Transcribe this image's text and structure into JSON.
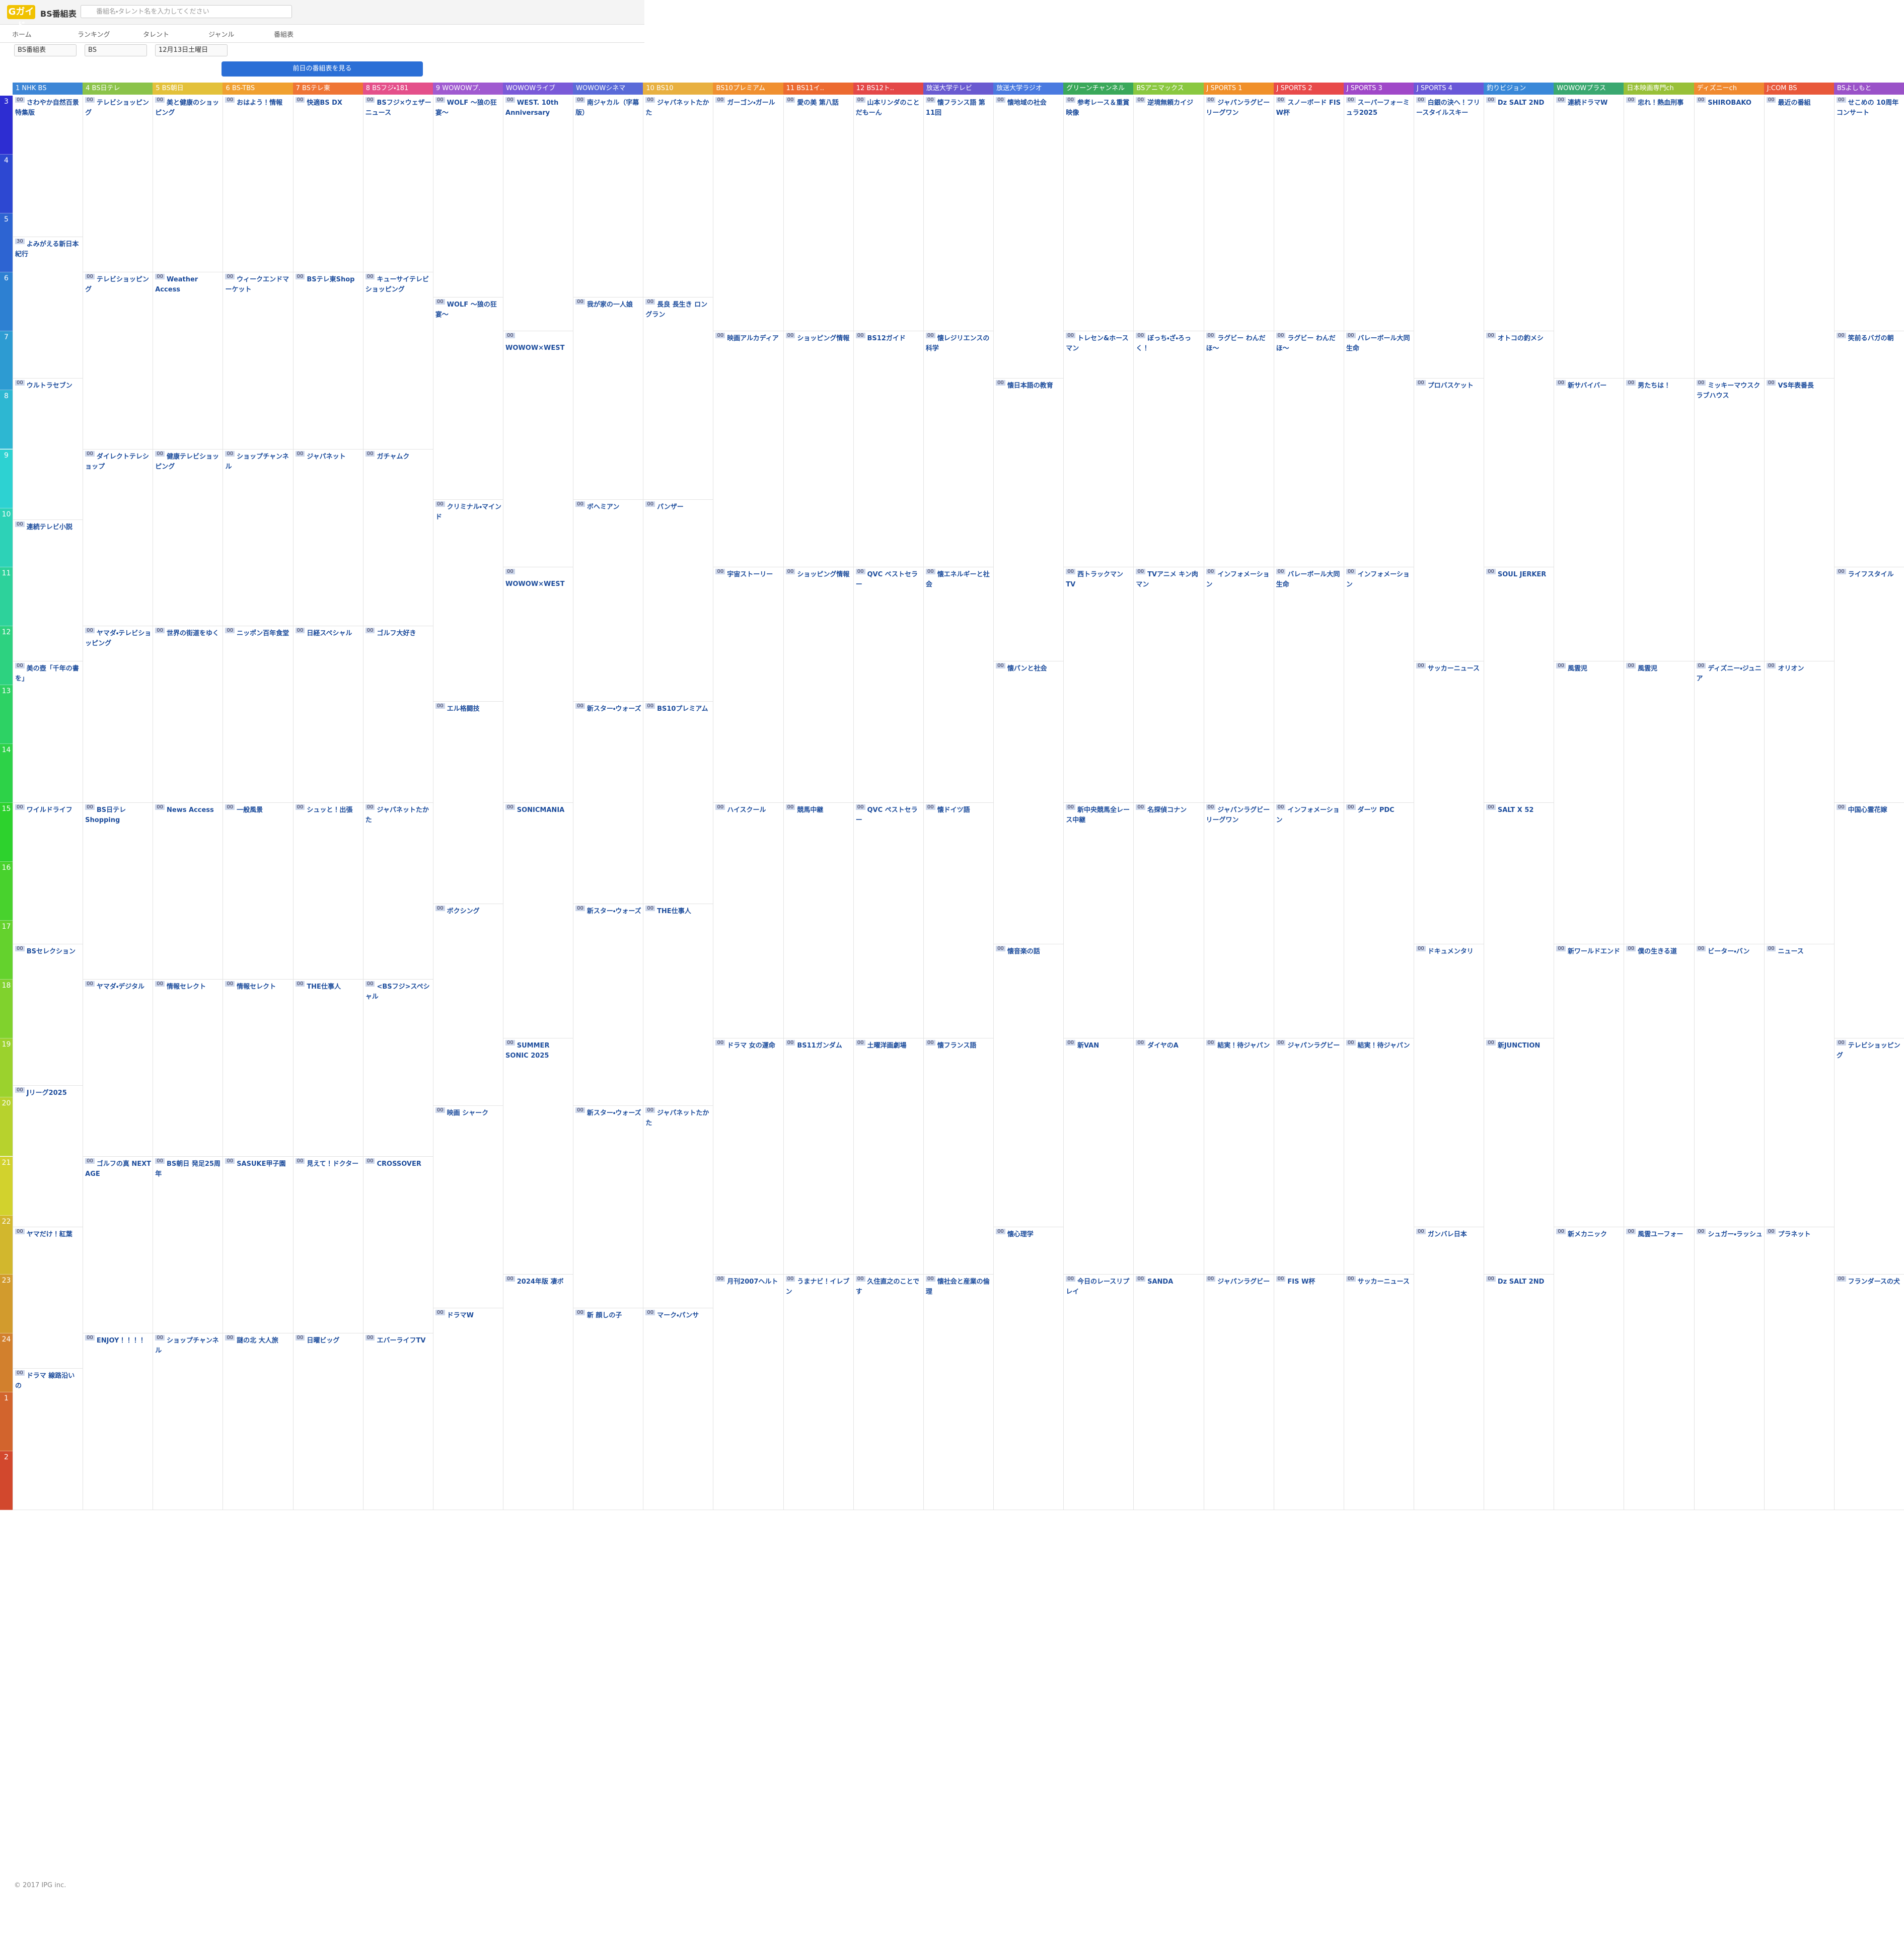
{
  "header": {
    "logo": "Gガイド",
    "title": "BS番組表",
    "search_placeholder": "番組名・タレント名を入力してください"
  },
  "nav": [
    "ホーム",
    "ランキング",
    "タレント",
    "ジャンル",
    "番組表"
  ],
  "filters": [
    "BS番組表",
    "BS",
    "12月13日土曜日"
  ],
  "button": "前日の番組表を見る",
  "hours": [
    "3",
    "4",
    "5",
    "6",
    "7",
    "8",
    "9",
    "10",
    "11",
    "12",
    "13",
    "14",
    "15",
    "16",
    "17",
    "18",
    "19",
    "20",
    "21",
    "22",
    "23",
    "24",
    "1",
    "2"
  ],
  "channels": [
    {
      "name": "1 NHK BS",
      "color": "#3d86d6",
      "programs": [
        {
          "min": "00",
          "title": "さわやか自然百景 特集版"
        },
        {
          "min": "30",
          "title": "よみがえる新日本紀行"
        },
        {
          "min": "00",
          "title": "ウルトラセブン"
        },
        {
          "min": "00",
          "title": "連続テレビ小説"
        },
        {
          "min": "00",
          "title": "美の壺「千年の書を」"
        },
        {
          "min": "00",
          "title": "ワイルドライフ"
        },
        {
          "min": "00",
          "title": "BSセレクション"
        },
        {
          "min": "00",
          "title": "Jリーグ2025"
        },
        {
          "min": "00",
          "title": "ヤマだけ！紅葉"
        },
        {
          "min": "00",
          "title": "ドラマ 線路沿いの"
        }
      ]
    },
    {
      "name": "4 BS日テレ",
      "color": "#8bc34a",
      "programs": [
        {
          "min": "00",
          "title": "テレビショッピング"
        },
        {
          "min": "00",
          "title": "テレビショッピング"
        },
        {
          "min": "00",
          "title": "ダイレクトテレショップ"
        },
        {
          "min": "00",
          "title": "ヤマダ・テレビショッピング"
        },
        {
          "min": "00",
          "title": "BS日テレ Shopping"
        },
        {
          "min": "00",
          "title": "ヤマダ・デジタル"
        },
        {
          "min": "00",
          "title": "ゴルフの真 NEXT AGE"
        },
        {
          "min": "00",
          "title": "ENJOY！！！！"
        }
      ]
    },
    {
      "name": "5 BS朝日",
      "color": "#e3c13a",
      "programs": [
        {
          "min": "00",
          "title": "美と健康のショッピング"
        },
        {
          "min": "00",
          "title": "Weather Access"
        },
        {
          "min": "00",
          "title": "健康テレビショッピング"
        },
        {
          "min": "00",
          "title": "世界の街道をゆく"
        },
        {
          "min": "00",
          "title": "News Access"
        },
        {
          "min": "00",
          "title": "情報セレクト"
        },
        {
          "min": "00",
          "title": "BS朝日 発足25周年"
        },
        {
          "min": "00",
          "title": "ショップチャンネル"
        }
      ]
    },
    {
      "name": "6 BS-TBS",
      "color": "#f0a030",
      "programs": [
        {
          "min": "00",
          "title": "おはよう！情報"
        },
        {
          "min": "00",
          "title": "ウィークエンドマーケット"
        },
        {
          "min": "00",
          "title": "ショップチャンネル"
        },
        {
          "min": "00",
          "title": "ニッポン百年食堂"
        },
        {
          "min": "00",
          "title": "一般風景"
        },
        {
          "min": "00",
          "title": "情報セレクト"
        },
        {
          "min": "00",
          "title": "SASUKE甲子園"
        },
        {
          "min": "00",
          "title": "謎の北 大人旅"
        }
      ]
    },
    {
      "name": "7 BSテレ東",
      "color": "#ef7535",
      "programs": [
        {
          "min": "00",
          "title": "快適BS DX"
        },
        {
          "min": "00",
          "title": "BSテレ東Shop"
        },
        {
          "min": "00",
          "title": "ジャパネット"
        },
        {
          "min": "00",
          "title": "日経スペシャル"
        },
        {
          "min": "00",
          "title": "シュッと！出張"
        },
        {
          "min": "00",
          "title": "THE仕事人"
        },
        {
          "min": "00",
          "title": "見えて！ドクター"
        },
        {
          "min": "00",
          "title": "日曜ビッグ"
        }
      ]
    },
    {
      "name": "8 BSフジ・181",
      "color": "#e4508a",
      "programs": [
        {
          "min": "00",
          "title": "BSフジ×ウェザーニュース"
        },
        {
          "min": "00",
          "title": "キューサイテレビショッピング"
        },
        {
          "min": "00",
          "title": "ガチャムク"
        },
        {
          "min": "00",
          "title": "ゴルフ大好き"
        },
        {
          "min": "00",
          "title": "ジャパネットたかた"
        },
        {
          "min": "00",
          "title": "<BSフジ>スペシャル"
        },
        {
          "min": "00",
          "title": "CROSSOVER"
        },
        {
          "min": "00",
          "title": "エバーライフTV"
        }
      ]
    },
    {
      "name": "9 WOWOWプ.",
      "color": "#a05ad0",
      "programs": [
        {
          "min": "00",
          "title": "WOLF ～狼の狂宴～"
        },
        {
          "min": "00",
          "title": "WOLF ～狼の狂宴～"
        },
        {
          "min": "00",
          "title": "クリミナル・マインド"
        },
        {
          "min": "00",
          "title": "エル格闘技"
        },
        {
          "min": "00",
          "title": "ボクシング"
        },
        {
          "min": "00",
          "title": "映画 シャーク"
        },
        {
          "min": "00",
          "title": "ドラマW"
        }
      ]
    },
    {
      "name": "WOWOWライブ",
      "color": "#7a5ad8",
      "programs": [
        {
          "min": "00",
          "title": "WEST. 10th Anniversary"
        },
        {
          "min": "00",
          "title": "WOWOW×WEST"
        },
        {
          "min": "00",
          "title": "WOWOW×WEST"
        },
        {
          "min": "00",
          "title": "SONICMANIA"
        },
        {
          "min": "00",
          "title": "SUMMER SONIC 2025"
        },
        {
          "min": "00",
          "title": "2024年版 凄ボ"
        }
      ]
    },
    {
      "name": "WOWOWシネマ",
      "color": "#5a6ad8",
      "programs": [
        {
          "min": "00",
          "title": "南ジャカル（字幕版）"
        },
        {
          "min": "00",
          "title": "我が家の一人娘"
        },
        {
          "min": "00",
          "title": "ボヘミアン"
        },
        {
          "min": "00",
          "title": "新スター・ウォーズ"
        },
        {
          "min": "00",
          "title": "新スター・ウォーズ"
        },
        {
          "min": "00",
          "title": "新スター・ウォーズ"
        },
        {
          "min": "00",
          "title": "新 顔しの子"
        }
      ]
    },
    {
      "name": "10 BS10",
      "color": "#e8b040",
      "programs": [
        {
          "min": "00",
          "title": "ジャパネットたかた"
        },
        {
          "min": "00",
          "title": "長良 長生き ロングラン"
        },
        {
          "min": "00",
          "title": "パンザー"
        },
        {
          "min": "00",
          "title": "BS10プレミアム"
        },
        {
          "min": "00",
          "title": "THE仕事人"
        },
        {
          "min": "00",
          "title": "ジャパネットたかた"
        },
        {
          "min": "00",
          "title": "マーク・パンサ"
        }
      ]
    },
    {
      "name": "BS10プレミアム",
      "color": "#f09030",
      "programs": [
        {
          "min": "00",
          "title": "ガーゴン・ガール"
        },
        {
          "min": "00",
          "title": "映画アルカディア"
        },
        {
          "min": "00",
          "title": "宇宙ストーリー"
        },
        {
          "min": "00",
          "title": "ハイスクール"
        },
        {
          "min": "00",
          "title": "ドラマ 女の運命"
        },
        {
          "min": "00",
          "title": "月刊2007ヘルト"
        }
      ]
    },
    {
      "name": "11 BS11イ..",
      "color": "#ec6a30",
      "programs": [
        {
          "min": "00",
          "title": "愛の美 第八話"
        },
        {
          "min": "00",
          "title": "ショッピング情報"
        },
        {
          "min": "00",
          "title": "ショッピング情報"
        },
        {
          "min": "00",
          "title": "競馬中継"
        },
        {
          "min": "00",
          "title": "BS11ガンダム"
        },
        {
          "min": "00",
          "title": "うまナビ！イレブン"
        }
      ]
    },
    {
      "name": "12 BS12ト..",
      "color": "#e44848",
      "programs": [
        {
          "min": "00",
          "title": "山本リンダのことだもーん"
        },
        {
          "min": "00",
          "title": "BS12ガイド"
        },
        {
          "min": "00",
          "title": "QVC ベストセラー"
        },
        {
          "min": "00",
          "title": "QVC ペストセラー"
        },
        {
          "min": "00",
          "title": "土曜洋画劇場"
        },
        {
          "min": "00",
          "title": "久住直之のことです"
        }
      ]
    },
    {
      "name": "放送大学テレビ",
      "color": "#6a5ad0",
      "programs": [
        {
          "min": "00",
          "title": "懐フランス語 第11回"
        },
        {
          "min": "00",
          "title": "懐レジリエンスの科学"
        },
        {
          "min": "00",
          "title": "懐エネルギーと社会"
        },
        {
          "min": "00",
          "title": "懐ドイツ語"
        },
        {
          "min": "00",
          "title": "懐フランス語"
        },
        {
          "min": "00",
          "title": "懐社会と産業の倫理"
        }
      ]
    },
    {
      "name": "放送大学ラジオ",
      "color": "#4a7ae0",
      "programs": [
        {
          "min": "00",
          "title": "懐地域の社会"
        },
        {
          "min": "00",
          "title": "懐日本語の教育"
        },
        {
          "min": "00",
          "title": "懐パンと社会"
        },
        {
          "min": "00",
          "title": "懐音楽の話"
        },
        {
          "min": "00",
          "title": "懐心理学"
        }
      ]
    },
    {
      "name": "グリーンチャンネル",
      "color": "#3aa85a",
      "programs": [
        {
          "min": "00",
          "title": "参考レース＆重賞映像"
        },
        {
          "min": "00",
          "title": "トレセン&ホースマン"
        },
        {
          "min": "00",
          "title": "西トラックマンTV"
        },
        {
          "min": "00",
          "title": "新中央競馬全レース中継"
        },
        {
          "min": "00",
          "title": "新VAN"
        },
        {
          "min": "00",
          "title": "今日のレースリプレイ"
        }
      ]
    },
    {
      "name": "BSアニマックス",
      "color": "#8ac840",
      "programs": [
        {
          "min": "00",
          "title": "逆境無頼カイジ"
        },
        {
          "min": "00",
          "title": "ぼっち・ざ・ろっく！"
        },
        {
          "min": "00",
          "title": "TVアニメ キン肉マン"
        },
        {
          "min": "00",
          "title": "名探偵コナン"
        },
        {
          "min": "00",
          "title": "ダイヤのA"
        },
        {
          "min": "00",
          "title": "SANDA"
        }
      ]
    },
    {
      "name": "J SPORTS 1",
      "color": "#f0902a",
      "programs": [
        {
          "min": "00",
          "title": "ジャパンラグビー リーグワン"
        },
        {
          "min": "00",
          "title": "ラグビー わんだほ～"
        },
        {
          "min": "00",
          "title": "インフォメーション"
        },
        {
          "min": "00",
          "title": "ジャパンラグビー リーグワン"
        },
        {
          "min": "00",
          "title": "結実！待ジャパン"
        },
        {
          "min": "00",
          "title": "ジャパンラグビー"
        }
      ]
    },
    {
      "name": "J SPORTS 2",
      "color": "#e84a4a",
      "programs": [
        {
          "min": "00",
          "title": "スノーボード FIS W杯"
        },
        {
          "min": "00",
          "title": "ラグビー わんだほ～"
        },
        {
          "min": "00",
          "title": "バレーボール大同生命"
        },
        {
          "min": "00",
          "title": "インフォメーション"
        },
        {
          "min": "00",
          "title": "ジャパンラグビー"
        },
        {
          "min": "00",
          "title": "FIS W杯"
        }
      ]
    },
    {
      "name": "J SPORTS 3",
      "color": "#a048c8",
      "programs": [
        {
          "min": "00",
          "title": "スーパーフォーミュラ2025"
        },
        {
          "min": "00",
          "title": "バレーボール大同生命"
        },
        {
          "min": "00",
          "title": "インフォメーション"
        },
        {
          "min": "00",
          "title": "ダーツ PDC"
        },
        {
          "min": "00",
          "title": "結実！待ジャパン"
        },
        {
          "min": "00",
          "title": "サッカーニュース"
        }
      ]
    },
    {
      "name": "J SPORTS 4",
      "color": "#6a58d8",
      "programs": [
        {
          "min": "00",
          "title": "白銀の決へ！フリースタイルスキー"
        },
        {
          "min": "00",
          "title": "プロバスケット"
        },
        {
          "min": "00",
          "title": "サッカーニュース"
        },
        {
          "min": "00",
          "title": "ドキュメンタリ"
        },
        {
          "min": "00",
          "title": "ガンバレ日本"
        }
      ]
    },
    {
      "name": "釣りビジョン",
      "color": "#3a88d8",
      "programs": [
        {
          "min": "00",
          "title": "Dz SALT 2ND"
        },
        {
          "min": "00",
          "title": "オトコの釣メシ"
        },
        {
          "min": "00",
          "title": "SOUL JERKER"
        },
        {
          "min": "00",
          "title": "SALT X 52"
        },
        {
          "min": "00",
          "title": "新JUNCTION"
        },
        {
          "min": "00",
          "title": "Dz SALT 2ND"
        }
      ]
    },
    {
      "name": "WOWOWプラス",
      "color": "#3aa870",
      "programs": [
        {
          "min": "00",
          "title": "連続ドラマW"
        },
        {
          "min": "00",
          "title": "新サバイバー"
        },
        {
          "min": "00",
          "title": "風雲児"
        },
        {
          "min": "00",
          "title": "新ワールドエンド"
        },
        {
          "min": "00",
          "title": "新メカニック"
        }
      ]
    },
    {
      "name": "日本映画専門ch",
      "color": "#98c038",
      "programs": [
        {
          "min": "00",
          "title": "忠れ！熱血刑事"
        },
        {
          "min": "00",
          "title": "男たちは！"
        },
        {
          "min": "00",
          "title": "風雲児"
        },
        {
          "min": "00",
          "title": "僕の生きる道"
        },
        {
          "min": "00",
          "title": "風雲ユーフォー"
        }
      ]
    },
    {
      "name": "ディズニーch",
      "color": "#f08a30",
      "programs": [
        {
          "min": "00",
          "title": "SHIROBAKO"
        },
        {
          "min": "00",
          "title": "ミッキーマウスクラブハウス"
        },
        {
          "min": "00",
          "title": "ディズニー・ジュニア"
        },
        {
          "min": "00",
          "title": "ビーター・バン"
        },
        {
          "min": "00",
          "title": "シュガー・ラッシュ"
        }
      ]
    },
    {
      "name": "J:COM BS",
      "color": "#e8583a",
      "programs": [
        {
          "min": "00",
          "title": "最近の番組"
        },
        {
          "min": "00",
          "title": "VS年表番長"
        },
        {
          "min": "00",
          "title": "オリオン"
        },
        {
          "min": "00",
          "title": "ニュース"
        },
        {
          "min": "00",
          "title": "プラネット"
        }
      ]
    },
    {
      "name": "BSよしもと",
      "color": "#9a52c8",
      "programs": [
        {
          "min": "00",
          "title": "せこめの 10周年コンサート"
        },
        {
          "min": "00",
          "title": "笑前るバガの朝"
        },
        {
          "min": "00",
          "title": "ライフスタイル"
        },
        {
          "min": "00",
          "title": "中国心霊花嫁"
        },
        {
          "min": "00",
          "title": "テレビショッピング"
        },
        {
          "min": "00",
          "title": "フランダースの犬"
        }
      ]
    }
  ],
  "footer": "© 2017 IPG inc."
}
